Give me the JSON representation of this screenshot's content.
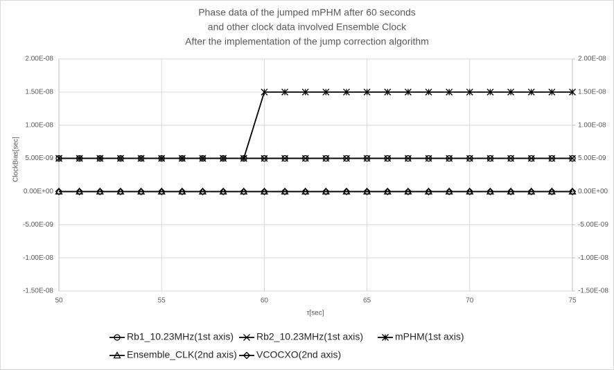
{
  "chart_data": {
    "type": "line",
    "title": [
      "Phase data of the jumped mPHM after 60 seconds",
      "and other clock data involved Ensemble Clock",
      "After the implementation of the jump correction algorithm"
    ],
    "x_label": "τ[sec]",
    "y_label": "ClockBias[sec]",
    "x": [
      50,
      51,
      52,
      53,
      54,
      55,
      56,
      57,
      58,
      59,
      60,
      61,
      62,
      63,
      64,
      65,
      66,
      67,
      68,
      69,
      70,
      71,
      72,
      73,
      74,
      75
    ],
    "xlim": [
      50,
      75
    ],
    "xticks": [
      50,
      55,
      60,
      65,
      70,
      75
    ],
    "ylim": [
      -1.5e-08,
      2e-08
    ],
    "yticks": [
      {
        "value": -1.5e-08,
        "label": "-1.50E-08"
      },
      {
        "value": -1e-08,
        "label": "-1.00E-08"
      },
      {
        "value": -5e-09,
        "label": "-5.00E-09"
      },
      {
        "value": 0,
        "label": "0.00E+00"
      },
      {
        "value": 5e-09,
        "label": "5.00E-09"
      },
      {
        "value": 1e-08,
        "label": "1.00E-08"
      },
      {
        "value": 1.5e-08,
        "label": "1.50E-08"
      },
      {
        "value": 2e-08,
        "label": "2.00E-08"
      }
    ],
    "y2lim": [
      -1.5e-08,
      2e-08
    ],
    "y2ticks": [
      {
        "value": -1.5e-08,
        "label": "-1.50E-08"
      },
      {
        "value": -1e-08,
        "label": "-1.00E-08"
      },
      {
        "value": -5e-09,
        "label": "-5.00E-09"
      },
      {
        "value": 0,
        "label": "0.00E+00"
      },
      {
        "value": 5e-09,
        "label": "5.00E-09"
      },
      {
        "value": 1e-08,
        "label": "1.00E-08"
      },
      {
        "value": 1.5e-08,
        "label": "1.50E-08"
      },
      {
        "value": 2e-08,
        "label": "2.00E-08"
      }
    ],
    "grid": true,
    "legend": "bottom",
    "series": [
      {
        "name": "Rb1_10.23MHz(1st axis)",
        "color": "#000000",
        "marker": "circle",
        "values": [
          5e-09,
          5e-09,
          5e-09,
          5e-09,
          5e-09,
          5e-09,
          5e-09,
          5e-09,
          5e-09,
          5e-09,
          5e-09,
          5e-09,
          5e-09,
          5e-09,
          5e-09,
          5e-09,
          5e-09,
          5e-09,
          5e-09,
          5e-09,
          5e-09,
          5e-09,
          5e-09,
          5e-09,
          5e-09,
          5e-09
        ]
      },
      {
        "name": "Rb2_10.23MHz(1st axis)",
        "color": "#000000",
        "marker": "x",
        "values": [
          5e-09,
          5e-09,
          5e-09,
          5e-09,
          5e-09,
          5e-09,
          5e-09,
          5e-09,
          5e-09,
          5e-09,
          5e-09,
          5e-09,
          5e-09,
          5e-09,
          5e-09,
          5e-09,
          5e-09,
          5e-09,
          5e-09,
          5e-09,
          5e-09,
          5e-09,
          5e-09,
          5e-09,
          5e-09,
          5e-09
        ]
      },
      {
        "name": "mPHM(1st axis)",
        "color": "#000000",
        "marker": "asterisk",
        "values": [
          5e-09,
          5e-09,
          5e-09,
          5e-09,
          5e-09,
          5e-09,
          5e-09,
          5e-09,
          5e-09,
          5e-09,
          1.5e-08,
          1.5e-08,
          1.5e-08,
          1.5e-08,
          1.5e-08,
          1.5e-08,
          1.5e-08,
          1.5e-08,
          1.5e-08,
          1.5e-08,
          1.5e-08,
          1.5e-08,
          1.5e-08,
          1.5e-08,
          1.5e-08,
          1.5e-08
        ]
      },
      {
        "name": "Ensemble_CLK(2nd axis)",
        "color": "#000000",
        "marker": "triangle",
        "axis": "y2",
        "values": [
          0,
          0,
          0,
          0,
          0,
          0,
          0,
          0,
          0,
          0,
          0,
          0,
          0,
          0,
          0,
          0,
          0,
          0,
          0,
          0,
          0,
          0,
          0,
          0,
          0,
          0
        ]
      },
      {
        "name": "VCOCXO(2nd axis)",
        "color": "#000000",
        "marker": "diamond",
        "axis": "y2",
        "values": [
          0,
          0,
          0,
          0,
          0,
          0,
          0,
          0,
          0,
          0,
          0,
          0,
          0,
          0,
          0,
          0,
          0,
          0,
          0,
          0,
          0,
          0,
          0,
          0,
          0,
          0
        ]
      }
    ]
  }
}
